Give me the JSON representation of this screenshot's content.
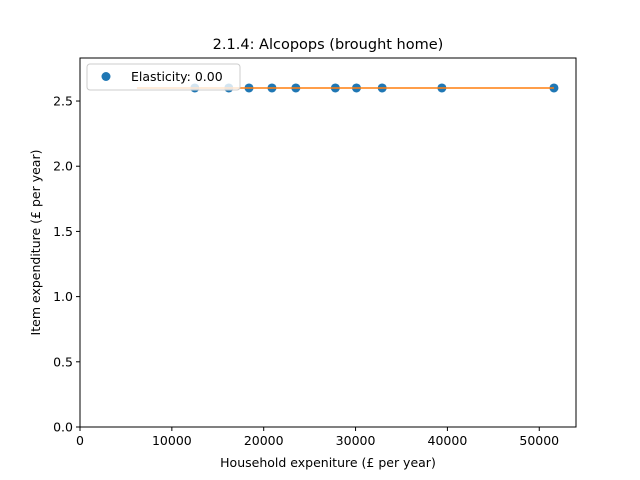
{
  "chart_data": {
    "type": "scatter",
    "title": "2.1.4: Alcopops (brought home)",
    "xlabel": "Household expeniture (£ per year)",
    "ylabel": "Item expenditure (£ per year)",
    "xlim": [
      0,
      54000
    ],
    "ylim": [
      0,
      2.83
    ],
    "xticks": [
      0,
      10000,
      20000,
      30000,
      40000,
      50000
    ],
    "xtick_labels": [
      "0",
      "10000",
      "20000",
      "30000",
      "40000",
      "50000"
    ],
    "yticks": [
      0.0,
      0.5,
      1.0,
      1.5,
      2.0,
      2.5
    ],
    "ytick_labels": [
      "0.0",
      "0.5",
      "1.0",
      "1.5",
      "2.0",
      "2.5"
    ],
    "grid": false,
    "legend_position": "top-left",
    "series": [
      {
        "name": "Elasticity: 0.00",
        "kind": "points",
        "color": "#1f77b4",
        "x": [
          12500,
          16200,
          18400,
          20900,
          23500,
          27800,
          30100,
          32900,
          39400,
          51600
        ],
        "y": [
          2.6,
          2.6,
          2.6,
          2.6,
          2.6,
          2.6,
          2.6,
          2.6,
          2.6,
          2.6
        ]
      },
      {
        "kind": "line",
        "color": "#ff7f0e",
        "x": [
          6200,
          51600
        ],
        "y": [
          2.6,
          2.6
        ]
      }
    ]
  }
}
